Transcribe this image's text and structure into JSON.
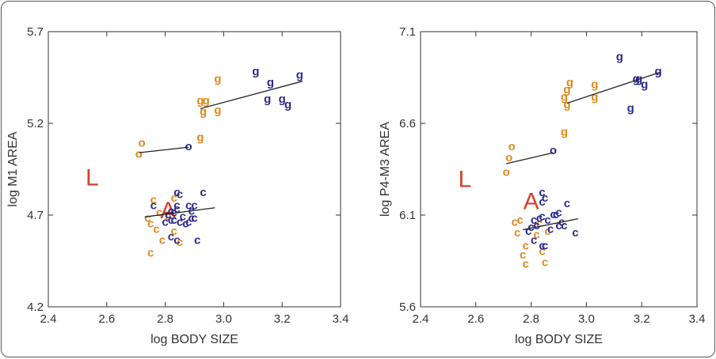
{
  "chart_data": [
    {
      "type": "scatter",
      "xlabel": "log BODY SIZE",
      "ylabel": "log M1 AREA",
      "xlim": [
        2.4,
        3.4
      ],
      "ylim": [
        4.2,
        5.7
      ],
      "x_ticks": [
        2.4,
        2.6,
        2.8,
        3.0,
        3.2,
        3.4
      ],
      "y_ticks": [
        4.2,
        4.7,
        5.2,
        5.7
      ],
      "x_tick_labels": [
        "2.4",
        "2.6",
        "2.8",
        "3.0",
        "3.2",
        "3.4"
      ],
      "y_tick_labels": [
        "4.2",
        "4.7",
        "5.2",
        "5.7"
      ],
      "annotations": [
        {
          "text": "L",
          "x": 2.55,
          "y": 4.91
        },
        {
          "text": "A",
          "x": 2.81,
          "y": 4.73
        }
      ],
      "series": [
        {
          "marker": "o",
          "color": "#e08a1e",
          "points": [
            [
              2.71,
              5.03
            ],
            [
              2.71,
              5.03
            ],
            [
              2.72,
              5.09
            ]
          ]
        },
        {
          "marker": "o",
          "color": "#2e2c8f",
          "points": [
            [
              2.88,
              5.07
            ]
          ]
        },
        {
          "marker": "g",
          "color": "#e08a1e",
          "points": [
            [
              2.92,
              5.12
            ],
            [
              2.92,
              5.32
            ],
            [
              2.94,
              5.32
            ],
            [
              2.93,
              5.26
            ],
            [
              2.98,
              5.27
            ],
            [
              2.98,
              5.44
            ]
          ]
        },
        {
          "marker": "g",
          "color": "#2e2c8f",
          "points": [
            [
              3.11,
              5.48
            ],
            [
              3.16,
              5.42
            ],
            [
              3.15,
              5.33
            ],
            [
              3.2,
              5.33
            ],
            [
              3.22,
              5.3
            ],
            [
              3.26,
              5.46
            ]
          ]
        },
        {
          "marker": "c",
          "color": "#e08a1e",
          "points": [
            [
              2.74,
              4.68
            ],
            [
              2.75,
              4.65
            ],
            [
              2.76,
              4.78
            ],
            [
              2.77,
              4.62
            ],
            [
              2.79,
              4.56
            ],
            [
              2.75,
              4.49
            ],
            [
              2.83,
              4.79
            ],
            [
              2.85,
              4.55
            ],
            [
              2.83,
              4.61
            ],
            [
              2.78,
              4.71
            ],
            [
              2.81,
              4.69
            ]
          ]
        },
        {
          "marker": "c",
          "color": "#2e2c8f",
          "points": [
            [
              2.76,
              4.75
            ],
            [
              2.8,
              4.66
            ],
            [
              2.81,
              4.7
            ],
            [
              2.82,
              4.72
            ],
            [
              2.82,
              4.67
            ],
            [
              2.83,
              4.67
            ],
            [
              2.83,
              4.71
            ],
            [
              2.84,
              4.73
            ],
            [
              2.84,
              4.75
            ],
            [
              2.84,
              4.82
            ],
            [
              2.85,
              4.81
            ],
            [
              2.85,
              4.66
            ],
            [
              2.86,
              4.69
            ],
            [
              2.87,
              4.65
            ],
            [
              2.88,
              4.66
            ],
            [
              2.88,
              4.75
            ],
            [
              2.89,
              4.72
            ],
            [
              2.89,
              4.68
            ],
            [
              2.9,
              4.75
            ],
            [
              2.9,
              4.68
            ],
            [
              2.91,
              4.56
            ],
            [
              2.93,
              4.82
            ],
            [
              2.82,
              4.58
            ],
            [
              2.84,
              4.56
            ]
          ]
        }
      ],
      "fit_lines": [
        {
          "x": [
            2.71,
            2.88
          ],
          "y": [
            5.04,
            5.07
          ]
        },
        {
          "x": [
            2.92,
            3.27
          ],
          "y": [
            5.28,
            5.43
          ]
        },
        {
          "x": [
            2.73,
            2.97
          ],
          "y": [
            4.69,
            4.74
          ]
        }
      ]
    },
    {
      "type": "scatter",
      "xlabel": "log BODY SIZE",
      "ylabel": "log P4-M3 AREA",
      "xlim": [
        2.4,
        3.4
      ],
      "ylim": [
        5.6,
        7.1
      ],
      "x_ticks": [
        2.4,
        2.6,
        2.8,
        3.0,
        3.2,
        3.4
      ],
      "y_ticks": [
        5.6,
        6.1,
        6.6,
        7.1
      ],
      "x_tick_labels": [
        "2.4",
        "2.6",
        "2.8",
        "3.0",
        "3.2",
        "3.4"
      ],
      "y_tick_labels": [
        "5.6",
        "6.1",
        "6.6",
        "7.1"
      ],
      "annotations": [
        {
          "text": "L",
          "x": 2.56,
          "y": 6.3
        },
        {
          "text": "A",
          "x": 2.8,
          "y": 6.18
        }
      ],
      "series": [
        {
          "marker": "o",
          "color": "#e08a1e",
          "points": [
            [
              2.71,
              6.33
            ],
            [
              2.72,
              6.41
            ],
            [
              2.73,
              6.47
            ]
          ]
        },
        {
          "marker": "o",
          "color": "#2e2c8f",
          "points": [
            [
              2.88,
              6.45
            ]
          ]
        },
        {
          "marker": "g",
          "color": "#e08a1e",
          "points": [
            [
              2.92,
              6.55
            ],
            [
              2.92,
              6.74
            ],
            [
              2.93,
              6.7
            ],
            [
              2.93,
              6.78
            ],
            [
              2.94,
              6.82
            ],
            [
              3.03,
              6.74
            ],
            [
              3.03,
              6.81
            ]
          ]
        },
        {
          "marker": "g",
          "color": "#2e2c8f",
          "points": [
            [
              3.12,
              6.96
            ],
            [
              3.16,
              6.68
            ],
            [
              3.18,
              6.84
            ],
            [
              3.19,
              6.84
            ],
            [
              3.21,
              6.81
            ],
            [
              3.26,
              6.88
            ]
          ]
        },
        {
          "marker": "c",
          "color": "#e08a1e",
          "points": [
            [
              2.74,
              6.06
            ],
            [
              2.75,
              6.0
            ],
            [
              2.76,
              6.07
            ],
            [
              2.77,
              5.88
            ],
            [
              2.78,
              5.93
            ],
            [
              2.8,
              6.03
            ],
            [
              2.82,
              5.99
            ],
            [
              2.83,
              6.05
            ],
            [
              2.84,
              5.9
            ],
            [
              2.85,
              5.84
            ],
            [
              2.86,
              6.01
            ],
            [
              2.78,
              5.83
            ]
          ]
        },
        {
          "marker": "c",
          "color": "#2e2c8f",
          "points": [
            [
              2.79,
              6.01
            ],
            [
              2.8,
              6.03
            ],
            [
              2.81,
              6.07
            ],
            [
              2.82,
              6.04
            ],
            [
              2.83,
              6.08
            ],
            [
              2.84,
              6.09
            ],
            [
              2.84,
              6.17
            ],
            [
              2.85,
              6.19
            ],
            [
              2.86,
              6.07
            ],
            [
              2.87,
              6.02
            ],
            [
              2.88,
              6.1
            ],
            [
              2.89,
              6.1
            ],
            [
              2.9,
              6.11
            ],
            [
              2.9,
              6.04
            ],
            [
              2.91,
              6.06
            ],
            [
              2.92,
              6.04
            ],
            [
              2.93,
              6.16
            ],
            [
              2.96,
              6.0
            ],
            [
              2.81,
              5.96
            ],
            [
              2.84,
              5.93
            ],
            [
              2.85,
              5.93
            ],
            [
              2.84,
              6.22
            ]
          ]
        }
      ],
      "fit_lines": [
        {
          "x": [
            2.71,
            2.88
          ],
          "y": [
            6.38,
            6.44
          ]
        },
        {
          "x": [
            2.93,
            3.27
          ],
          "y": [
            6.71,
            6.88
          ]
        },
        {
          "x": [
            2.77,
            2.97
          ],
          "y": [
            6.02,
            6.08
          ]
        }
      ]
    }
  ]
}
